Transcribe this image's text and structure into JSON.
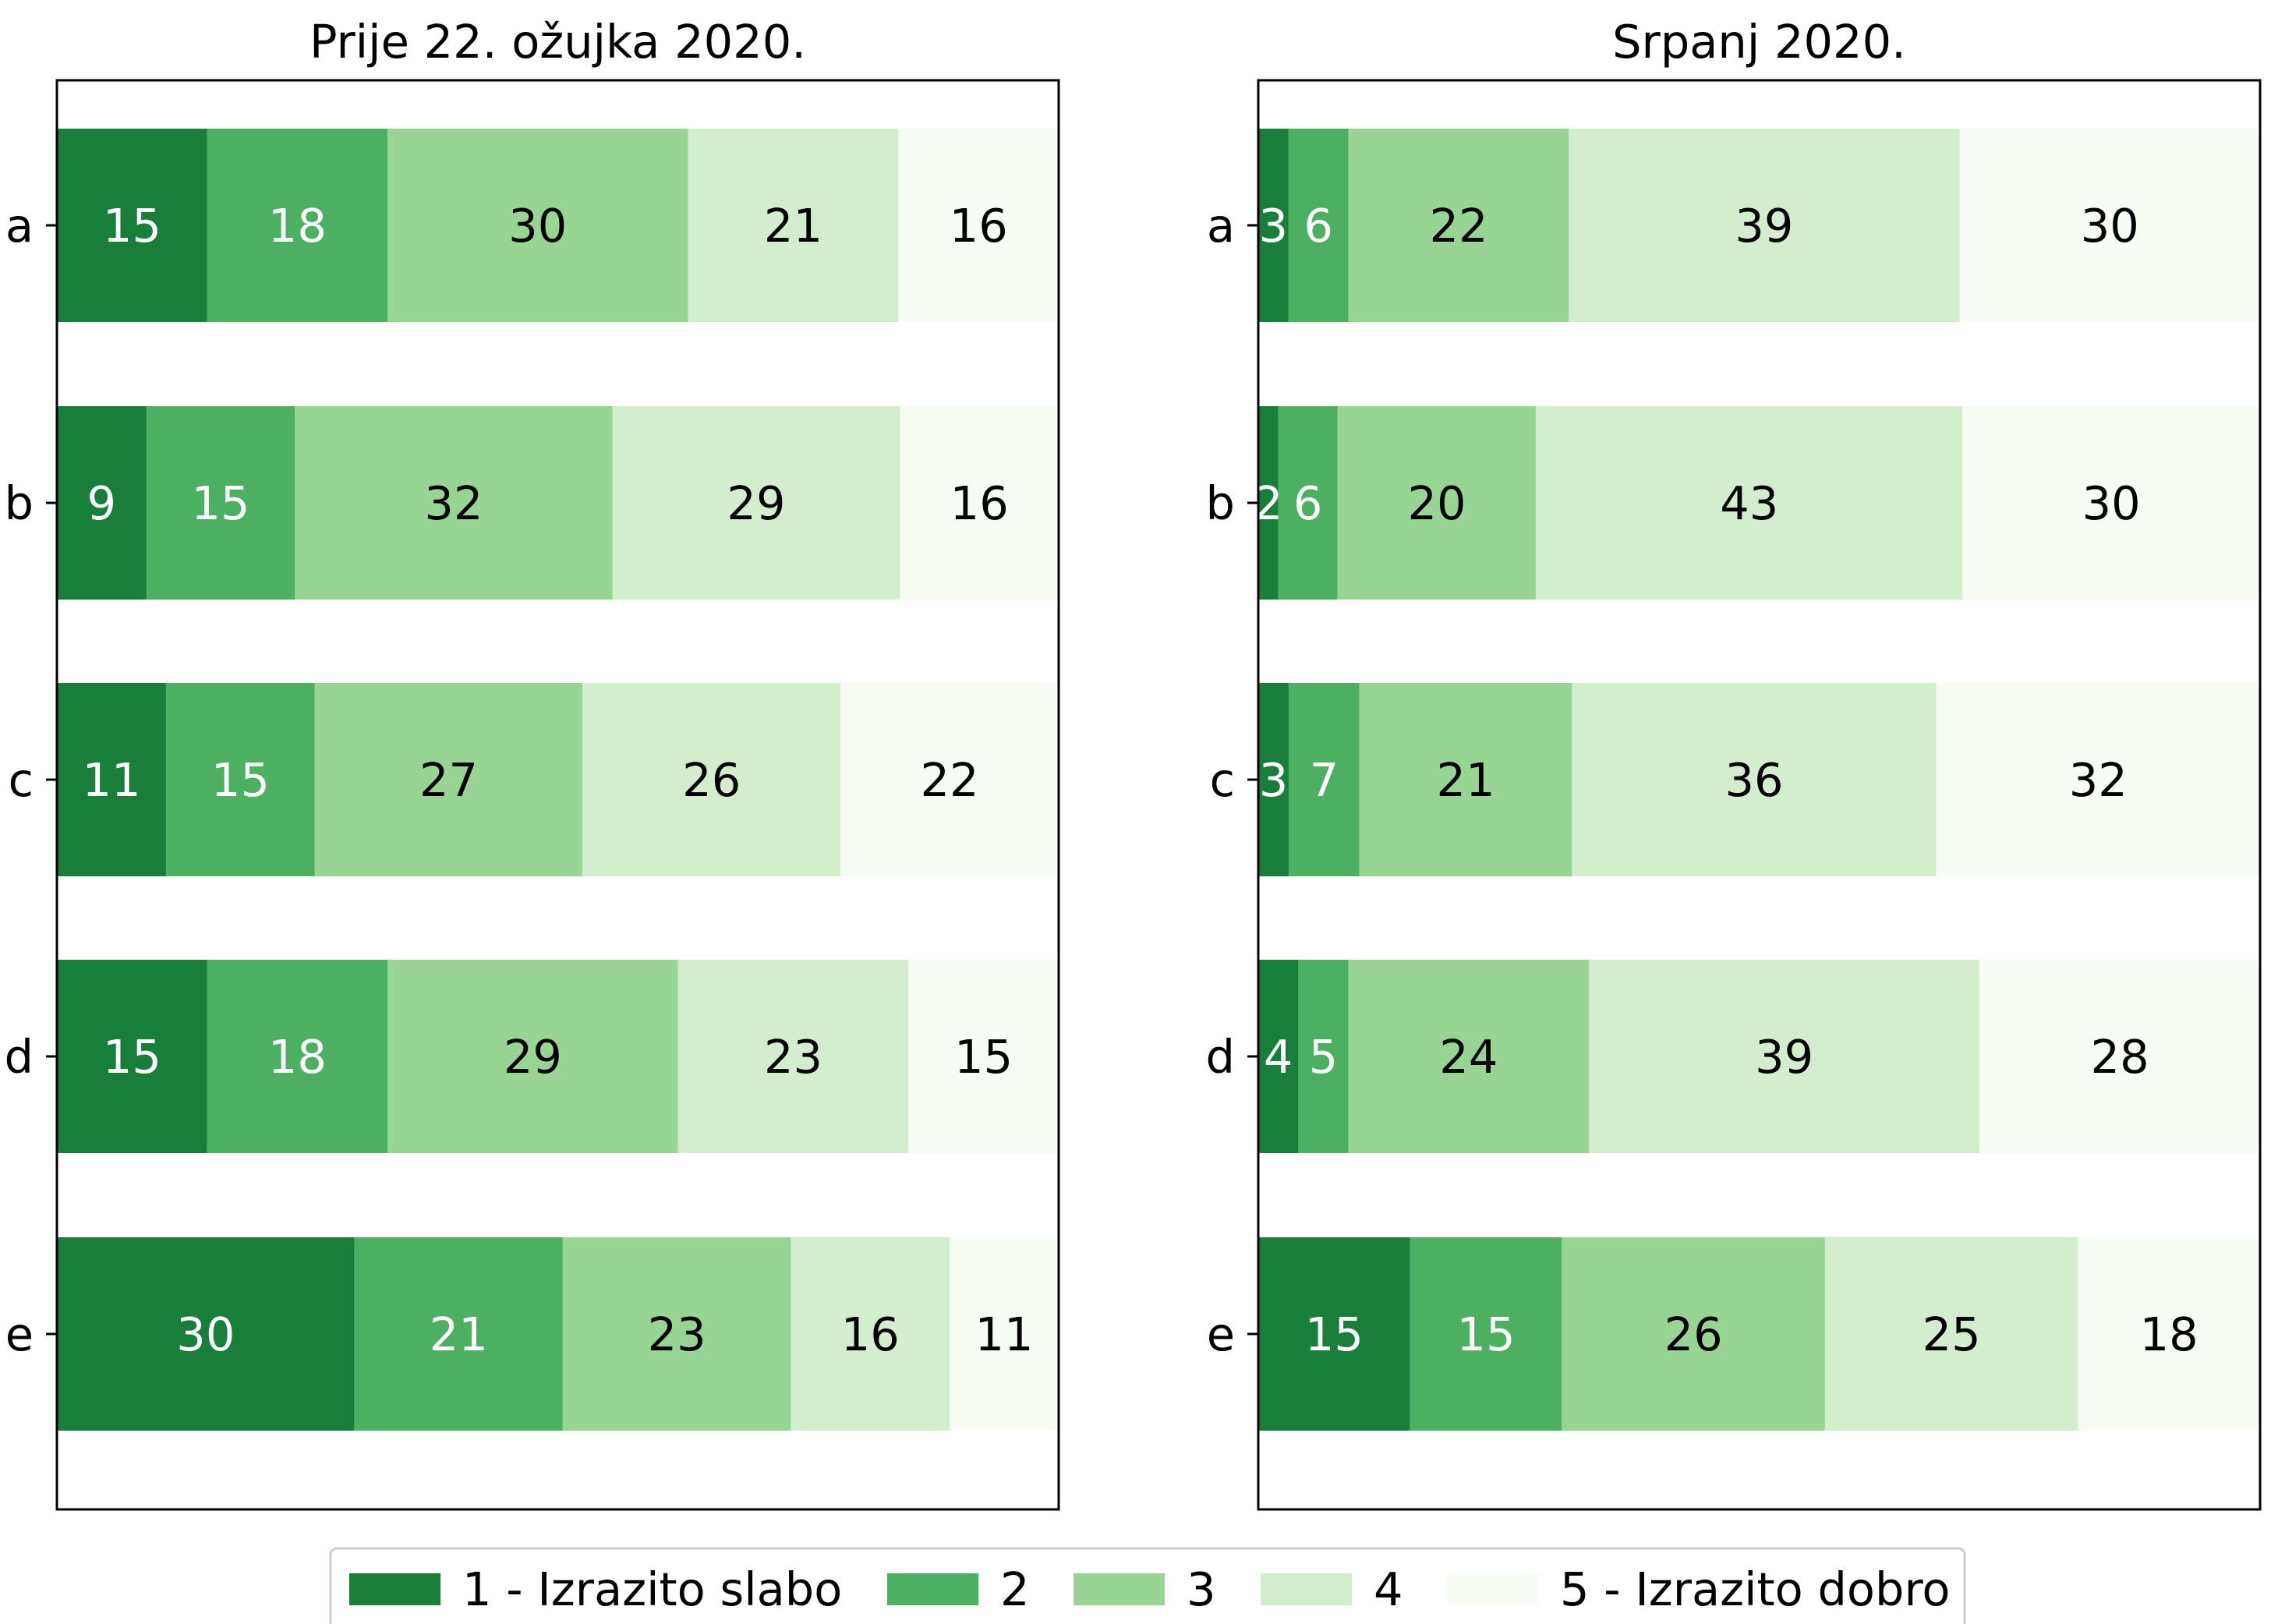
{
  "chart_data": [
    {
      "type": "bar",
      "orientation": "horizontal",
      "stacked": true,
      "normalized": true,
      "title": "Prije 22. ožujka 2020.",
      "categories": [
        "a",
        "b",
        "c",
        "d",
        "e"
      ],
      "series": [
        {
          "name": "1 - Izrazito slabo",
          "values": [
            15,
            9,
            11,
            15,
            30
          ]
        },
        {
          "name": "2",
          "values": [
            18,
            15,
            15,
            18,
            21
          ]
        },
        {
          "name": "3",
          "values": [
            30,
            32,
            27,
            29,
            23
          ]
        },
        {
          "name": "4",
          "values": [
            21,
            29,
            26,
            23,
            16
          ]
        },
        {
          "name": "5 - Izrazito dobro",
          "values": [
            16,
            16,
            22,
            15,
            11
          ]
        }
      ],
      "xaxis_ticks": "hidden",
      "grid": false
    },
    {
      "type": "bar",
      "orientation": "horizontal",
      "stacked": true,
      "normalized": true,
      "title": "Srpanj 2020.",
      "categories": [
        "a",
        "b",
        "c",
        "d",
        "e"
      ],
      "series": [
        {
          "name": "1 - Izrazito slabo",
          "values": [
            3,
            2,
            3,
            4,
            15
          ]
        },
        {
          "name": "2",
          "values": [
            6,
            6,
            7,
            5,
            15
          ]
        },
        {
          "name": "3",
          "values": [
            22,
            20,
            21,
            24,
            26
          ]
        },
        {
          "name": "4",
          "values": [
            39,
            43,
            36,
            39,
            25
          ]
        },
        {
          "name": "5 - Izrazito dobro",
          "values": [
            30,
            30,
            32,
            28,
            18
          ]
        }
      ],
      "xaxis_ticks": "hidden",
      "grid": false
    }
  ],
  "legend": {
    "position": "bottom-center",
    "entries": [
      "1 - Izrazito slabo",
      "2",
      "3",
      "4",
      "5 - Izrazito dobro"
    ]
  },
  "colors": {
    "series": [
      "#187e3a",
      "#4caf62",
      "#98d594",
      "#d3eecd",
      "#f7fcf5"
    ],
    "label_text_dark_series": [
      "#ffffff",
      "#ffffff",
      "#000000",
      "#000000",
      "#000000"
    ]
  }
}
